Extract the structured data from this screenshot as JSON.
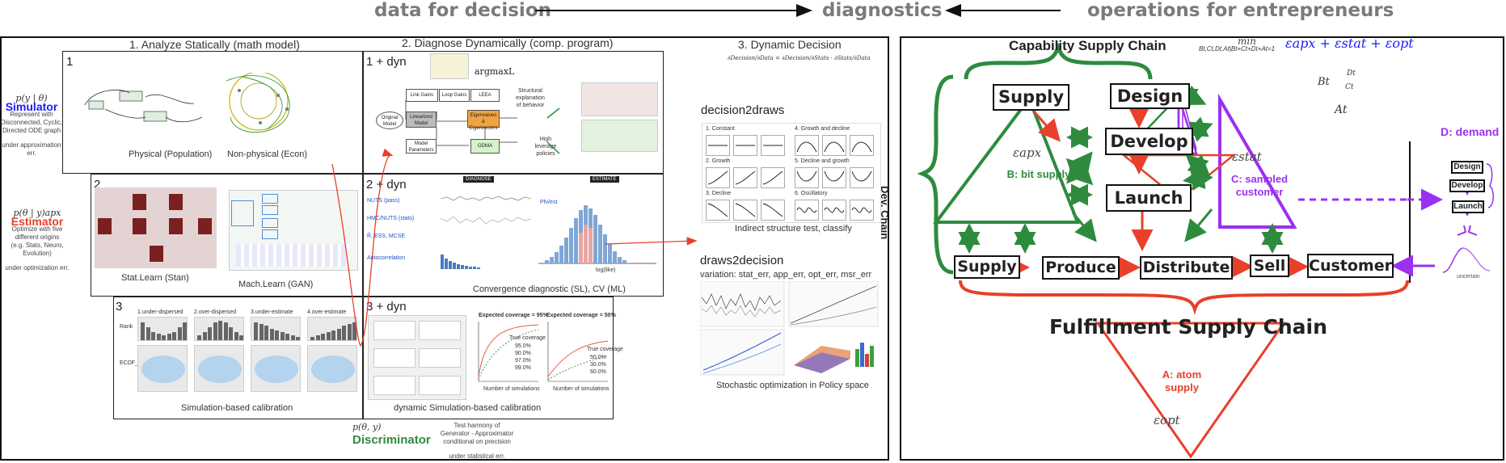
{
  "header": {
    "data_for_decision": "data for decision",
    "diagnostics": "diagnostics",
    "operations": "operations for entrepreneurs"
  },
  "left": {
    "col1_title": "1. Analyze Statically (math model)",
    "col2_title": "2. Diagnose Dynamically (comp. program)",
    "col3_title": "3. Dynamic Decision",
    "simulator": {
      "math": "p(y | θ)",
      "title": "Simulator",
      "desc1": "Represent with",
      "desc2": "Disconnected, Cyclic,",
      "desc3": "Directed ODE graph",
      "foot": "under approximation err."
    },
    "estimator": {
      "math": "p(θ | y)apx",
      "title": "Estimator",
      "desc1": "Optimize with five",
      "desc2": "different origins",
      "desc3": "(e.g. Stats, Neuro, Evolution)",
      "foot": "under optimization err."
    },
    "discriminator": {
      "math": "p(θ, y)",
      "title": "Discriminator",
      "desc1": "Test harmony of",
      "desc2": "Generator - Approximator",
      "desc3": "conditional on precision",
      "foot": "under statistical err."
    },
    "row1": {
      "num": "1",
      "cap_physical": "Physical (Population)",
      "cap_nonphysical": "Non-physical (Econ)",
      "dyn_num": "1 + dyn",
      "argmax": "argmaxL",
      "link_gains": "Link Gains",
      "loop_gains": "Loop Gains",
      "leea": "LEEA",
      "original_model": "Original Model",
      "linearized_model": "Linearized Model",
      "eigenvalues": "Eigenvalues & Eigenvectors",
      "model_parameters": "Model Parameters",
      "odma": "ODMA",
      "structural": "Structural explanation of behavior",
      "high_leverage": "High leverage policies"
    },
    "row2": {
      "num": "2",
      "cap_stat": "Stat.Learn (Stan)",
      "cap_mach": "Mach.Learn (GAN)",
      "dyn_num": "2 + dyn",
      "diagnose_tag": "DIAGNOSE",
      "estimate_tag": "ESTIMATE",
      "nuts": "NUTS (pass)",
      "hmc": "HMC/NUTS (stats)",
      "rhat": "R̂, ESS, MCSE",
      "autocorr": "Autocorrelation",
      "phiest": "Phi/est",
      "loglike": "log(like)",
      "cap_conv": "Convergence diagnostic (SL), CV (ML)"
    },
    "row3": {
      "num": "3",
      "sbc_titles": [
        "1.under-dispersed",
        "2.over-dispersed",
        "3.under-estimate",
        "4.over-estimate"
      ],
      "rank_label": "Rank",
      "ecdf_label": "ECDF_diff",
      "cap_sbc": "Simulation-based calibration",
      "dyn_num": "3 + dyn",
      "cov95": "Expected coverage = 95%",
      "cov50": "Expected coverage = 50%",
      "true_cov": "True coverage",
      "nsim": "Number of simulations",
      "cov95_vals": [
        "95.0%",
        "90.0%",
        "97.0%",
        "99.0%"
      ],
      "cov50_vals": [
        "50.0%",
        "30.0%",
        "60.0%"
      ],
      "cap_dsbc": "dynamic Simulation-based calibration"
    },
    "col3": {
      "formula": "∂Decision/∂Data = ∂Decision/∂Stats · ∂Stats/∂Data",
      "decision2draws": "decision2draws",
      "cap_indirect": "Indirect structure test, classify",
      "shapes": [
        "1. Constant",
        "2. Growth",
        "3. Decline",
        "4. Growth and decline",
        "5. Decline and growth",
        "6. Oscillatory"
      ],
      "draws2decision": "draws2decision",
      "variation": "variation: stat_err, app_err, opt_err, msr_err",
      "cap_stoch": "Stochastic optimization in Policy space"
    }
  },
  "right": {
    "capability": "Capability Supply Chain",
    "fulfillment": "Fulfillment Supply Chain",
    "dev_chain": "Dev. Chain",
    "boxes": {
      "supply_top": "Supply",
      "design": "Design",
      "develop": "Develop",
      "launch": "Launch",
      "supply_bottom": "Supply",
      "produce": "Produce",
      "distribute": "Distribute",
      "sell": "Sell",
      "customer": "Customer"
    },
    "b_bit_supply": "B: bit supply",
    "c_sampled_customer": "C: sampled customer",
    "a_atom_supply": "A: atom supply",
    "d_demand": "D: demand",
    "eps_apx": "εapx",
    "eps_stat": "εstat",
    "eps_opt": "εopt",
    "min_label": "min",
    "min_sub": "Bt,Ct,Dt,At|Bt+Ct+Dt+At=1",
    "objective": "εapx + εstat + εopt",
    "tri_b": "Bt",
    "tri_c": "Ct",
    "tri_d": "Dt",
    "tri_a": "At",
    "mini": {
      "design": "Design",
      "develop": "Develop",
      "launch": "Launch"
    },
    "uncertain": "uncertain"
  },
  "colors": {
    "green": "#2e8b3e",
    "red": "#e8402a",
    "purple": "#9b30f0",
    "blue": "#1a1aff"
  }
}
